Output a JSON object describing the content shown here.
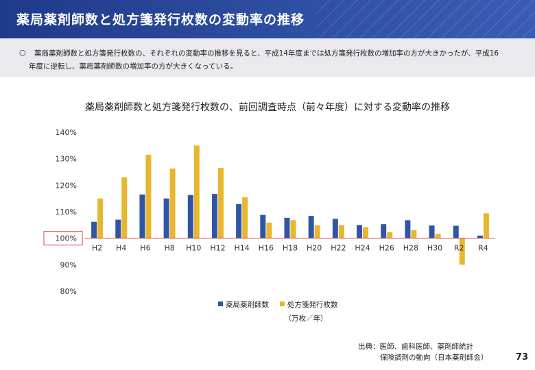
{
  "header": {
    "title": "薬局薬剤師数と処方箋発行枚数の変動率の推移"
  },
  "summary": {
    "bullet": "○",
    "line1": "薬局薬剤師数と処方箋発行枚数の、それぞれの変動率の推移を見ると、平成14年度までは処方箋発行枚数の増加率の方が大きかったが、平成16",
    "line2": "年度に逆転し、薬局薬剤師数の増加率の方が大きくなっている。"
  },
  "chart_data": {
    "type": "bar",
    "title": "薬局薬剤師数と処方箋発行枚数の、前回調査時点（前々年度）に対する変動率の推移",
    "categories": [
      "H2",
      "H4",
      "H6",
      "H8",
      "H10",
      "H12",
      "H14",
      "H16",
      "H18",
      "H20",
      "H22",
      "H24",
      "H26",
      "H28",
      "H30",
      "R2",
      "R4"
    ],
    "series": [
      {
        "name": "薬局薬剤師数",
        "color": "#2f55a4",
        "values": [
          106.2,
          107.0,
          116.5,
          115.0,
          116.3,
          116.7,
          112.9,
          108.8,
          107.7,
          108.4,
          107.3,
          105.0,
          105.3,
          106.8,
          104.8,
          104.7,
          101.0
        ]
      },
      {
        "name": "処方箋発行枚数",
        "color": "#e8b730",
        "values": [
          115.0,
          123.0,
          131.5,
          126.3,
          135.0,
          126.5,
          115.5,
          105.9,
          106.8,
          104.9,
          105.0,
          104.2,
          102.3,
          103.0,
          101.7,
          90.0,
          109.4
        ]
      }
    ],
    "y_ticks": [
      "140%",
      "130%",
      "120%",
      "110%",
      "100%",
      "90%",
      "80%"
    ],
    "ylim": [
      80,
      140
    ],
    "baseline": 100,
    "baseline_label_highlight_color": "#d04040",
    "legend_position": "bottom",
    "legend_note": "（万枚／年）",
    "grid": false
  },
  "source": {
    "line1": "出典：医師、歯科医師、薬剤師統計",
    "line2": "保険調剤の動向（日本薬剤師会）"
  },
  "page_number": "73"
}
